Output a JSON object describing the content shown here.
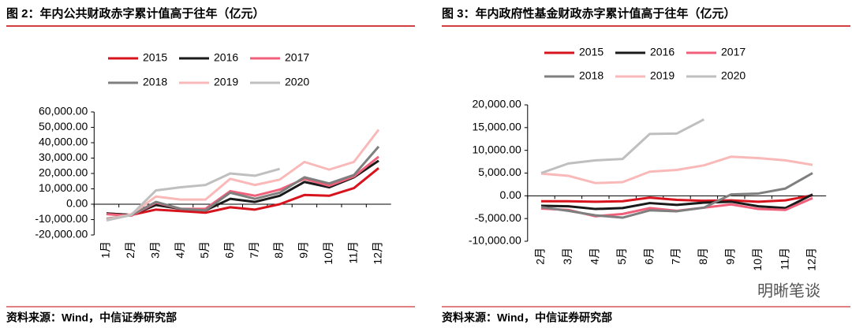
{
  "chart_data": [
    {
      "type": "line",
      "title": "图 2：年内公共财政赤字累计值高于往年（亿元）",
      "source": "资料来源：Wind，中信证券研究部",
      "categories": [
        "1月",
        "2月",
        "3月",
        "4月",
        "5月",
        "6月",
        "7月",
        "8月",
        "9月",
        "10月",
        "11月",
        "12月"
      ],
      "ylim": [
        -20000,
        60000
      ],
      "yticks": [
        {
          "value": 60000,
          "label": "60,000.00"
        },
        {
          "value": 50000,
          "label": "50,000.00"
        },
        {
          "value": 40000,
          "label": "40,000.00"
        },
        {
          "value": 30000,
          "label": "30,000.00"
        },
        {
          "value": 20000,
          "label": "20,000.00"
        },
        {
          "value": 10000,
          "label": "10,000.00"
        },
        {
          "value": 0,
          "label": "0.00"
        },
        {
          "value": -10000,
          "label": "-10,000.00"
        },
        {
          "value": -20000,
          "label": "-20,000.00"
        }
      ],
      "series": [
        {
          "name": "2015",
          "color": "#d7141e",
          "values": [
            -6000,
            -7000,
            -3500,
            -4500,
            -5500,
            -2000,
            -3500,
            0,
            6000,
            5500,
            10500,
            23500
          ]
        },
        {
          "name": "2016",
          "color": "#1a1a1a",
          "values": [
            -6000,
            -7000,
            -500,
            -3000,
            -4000,
            3500,
            1500,
            5500,
            14500,
            11000,
            17500,
            28300
          ]
        },
        {
          "name": "2017",
          "color": "#f0607a",
          "values": [
            -6500,
            -7500,
            1000,
            -3000,
            -3000,
            8500,
            5500,
            9500,
            16500,
            12000,
            18000,
            30900
          ]
        },
        {
          "name": "2018",
          "color": "#7f7f7f",
          "values": [
            -9500,
            -7000,
            1500,
            -3000,
            -4000,
            7500,
            3500,
            7500,
            17500,
            13500,
            19000,
            37500
          ]
        },
        {
          "name": "2019",
          "color": "#f9b9b9",
          "values": [
            -10000,
            -6500,
            5000,
            3000,
            3000,
            16500,
            12500,
            16000,
            27500,
            22500,
            27500,
            48500
          ]
        },
        {
          "name": "2020",
          "color": "#bfbfbf",
          "values": [
            -10500,
            -7000,
            9000,
            11000,
            12500,
            20000,
            18500,
            23000,
            null,
            null,
            null,
            null
          ]
        }
      ]
    },
    {
      "type": "line",
      "title": "图 3：年内政府性基金财政赤字累计值高于往年（亿元）",
      "source": "资料来源：Wind，中信证券研究部",
      "watermark": "明晰笔谈",
      "categories": [
        "2月",
        "3月",
        "4月",
        "5月",
        "6月",
        "7月",
        "8月",
        "9月",
        "10月",
        "11月",
        "12月"
      ],
      "ylim": [
        -10000,
        20000
      ],
      "yticks": [
        {
          "value": 20000,
          "label": "20,000.00"
        },
        {
          "value": 15000,
          "label": "15,000.00"
        },
        {
          "value": 10000,
          "label": "10,000.00"
        },
        {
          "value": 5000,
          "label": "5,000.00"
        },
        {
          "value": 0,
          "label": "0.00"
        },
        {
          "value": -5000,
          "label": "-5,000.00"
        },
        {
          "value": -10000,
          "label": "-10,000.00"
        }
      ],
      "series": [
        {
          "name": "2015",
          "color": "#d7141e",
          "values": [
            -1200,
            -1200,
            -1300,
            -1200,
            -400,
            -900,
            -1100,
            -1000,
            -1300,
            -1000,
            100
          ]
        },
        {
          "name": "2016",
          "color": "#1a1a1a",
          "values": [
            -2200,
            -2300,
            -2900,
            -2700,
            -1600,
            -2000,
            -1500,
            -1300,
            -2300,
            -2700,
            300
          ]
        },
        {
          "name": "2017",
          "color": "#f0607a",
          "values": [
            -2800,
            -3100,
            -4500,
            -4000,
            -2700,
            -3300,
            -2600,
            -1900,
            -2900,
            -3100,
            -500
          ]
        },
        {
          "name": "2018",
          "color": "#7f7f7f",
          "values": [
            -2500,
            -3300,
            -4300,
            -4800,
            -3200,
            -3400,
            -2600,
            300,
            500,
            1600,
            5000
          ]
        },
        {
          "name": "2019",
          "color": "#f9b9b9",
          "values": [
            4900,
            4400,
            2800,
            3000,
            5300,
            5700,
            6700,
            8600,
            8300,
            7800,
            6800
          ]
        },
        {
          "name": "2020",
          "color": "#bfbfbf",
          "values": [
            5000,
            7100,
            7800,
            8100,
            13600,
            13700,
            16800,
            null,
            null,
            null,
            null
          ]
        }
      ]
    }
  ]
}
